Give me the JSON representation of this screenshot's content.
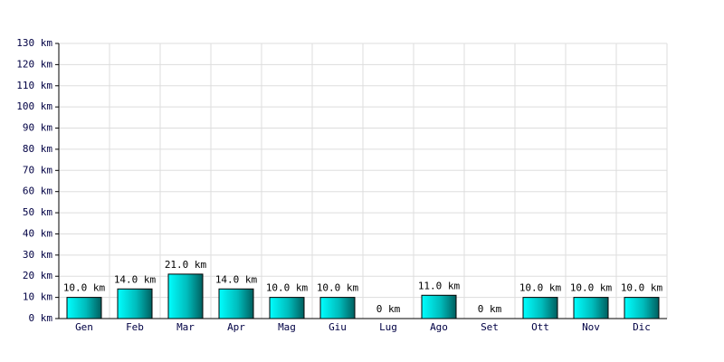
{
  "chart_data": {
    "type": "bar",
    "categories": [
      "Gen",
      "Feb",
      "Mar",
      "Apr",
      "Mag",
      "Giu",
      "Lug",
      "Ago",
      "Set",
      "Ott",
      "Nov",
      "Dic"
    ],
    "values": [
      10,
      14,
      21,
      14,
      10,
      10,
      0,
      11,
      0,
      10,
      10,
      10
    ],
    "value_labels": [
      "10.0 km",
      "14.0 km",
      "21.0 km",
      "14.0 km",
      "10.0 km",
      "10.0 km",
      "0 km",
      "11.0 km",
      "0 km",
      "10.0 km",
      "10.0 km",
      "10.0 km"
    ],
    "color": "#00cccc",
    "ylim": [
      0,
      130
    ],
    "yticks": [
      {
        "value": 0,
        "label": "0 km"
      },
      {
        "value": 10,
        "label": "10 km"
      },
      {
        "value": 20,
        "label": "20 km"
      },
      {
        "value": 30,
        "label": "30 km"
      },
      {
        "value": 40,
        "label": "40 km"
      },
      {
        "value": 50,
        "label": "50 km"
      },
      {
        "value": 60,
        "label": "60 km"
      },
      {
        "value": 70,
        "label": "70 km"
      },
      {
        "value": 80,
        "label": "80 km"
      },
      {
        "value": 90,
        "label": "90 km"
      },
      {
        "value": 100,
        "label": "100 km"
      },
      {
        "value": 110,
        "label": "110 km"
      },
      {
        "value": 120,
        "label": "120 km"
      },
      {
        "value": 130,
        "label": "130 km"
      }
    ],
    "grid": true
  }
}
